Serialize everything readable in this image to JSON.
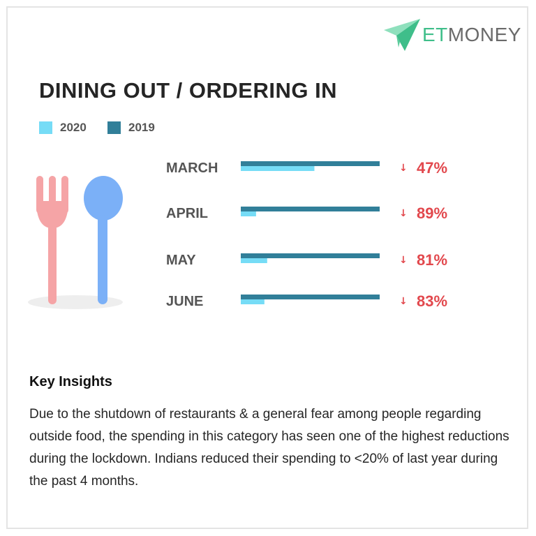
{
  "brand": {
    "et": "ET",
    "money": "MONEY"
  },
  "colors": {
    "c2020": "#76dcf6",
    "c2019": "#317f99",
    "decline": "#e2484d",
    "label": "#555555"
  },
  "chart_data": {
    "type": "bar",
    "title": "DINING OUT / ORDERING IN",
    "categories": [
      "MARCH",
      "APRIL",
      "MAY",
      "JUNE"
    ],
    "series": [
      {
        "name": "2020",
        "values": [
          53,
          11,
          19,
          17
        ]
      },
      {
        "name": "2019",
        "values": [
          100,
          100,
          100,
          100
        ]
      }
    ],
    "change_labels": [
      "47%",
      "89%",
      "81%",
      "83%"
    ],
    "change_direction": "down",
    "xlim": [
      0,
      100
    ],
    "legend": "top-left",
    "grid": false
  },
  "insights": {
    "heading": "Key Insights",
    "text": "Due to the shutdown of restaurants & a general fear among people regarding outside food, the spending in this category has seen one of the highest reductions during the lockdown. Indians reduced their spending to <20% of last year during the past 4 months."
  }
}
